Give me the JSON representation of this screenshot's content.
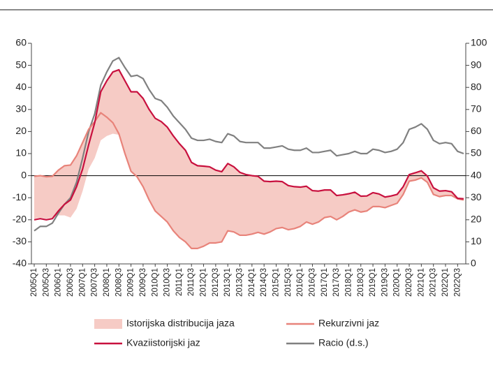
{
  "chart_data": {
    "type": "line",
    "categories": [
      "2005Q1",
      null,
      "2005Q3",
      null,
      "2006Q1",
      null,
      "2006Q3",
      null,
      "2007Q1",
      null,
      "2007Q3",
      null,
      "2008Q1",
      null,
      "2008Q3",
      null,
      "2009Q1",
      null,
      "2009Q3",
      null,
      "2010Q1",
      null,
      "2010Q3",
      null,
      "2011Q1",
      null,
      "2011Q3",
      null,
      "2012Q1",
      null,
      "2012Q3",
      null,
      "2013Q1",
      null,
      "2013Q3",
      null,
      "2014Q1",
      null,
      "2014Q3",
      null,
      "2015Q1",
      null,
      "2015Q3",
      null,
      "2016Q1",
      null,
      "2016Q3",
      null,
      "2017Q1",
      null,
      "2017Q3",
      null,
      "2018Q1",
      null,
      "2018Q3",
      null,
      "2019Q1",
      null,
      "2019Q3",
      null,
      "2020Q1",
      null,
      "2020Q3",
      null,
      "2021Q1",
      null,
      "2021Q3",
      null,
      "2022Q1",
      null,
      "2022Q3",
      null
    ],
    "band": {
      "name": "Istorijska distribucija jaza",
      "color": "#f6cbc5",
      "low": [
        -19.5,
        -19,
        -19.5,
        -19,
        -18,
        -18,
        -19,
        -15,
        -7,
        3,
        8,
        16,
        18,
        19,
        18.5,
        10,
        2,
        -0.5,
        -5,
        -11,
        -16,
        -18.5,
        -21,
        -25,
        -28,
        -30,
        -33,
        -33,
        -32,
        -30.5,
        -30.5,
        -30,
        -25,
        -25.5,
        -27,
        -27,
        -26.5,
        -25.7,
        -26.5,
        -25.5,
        -24,
        -23.5,
        -24.5,
        -24,
        -23,
        -21,
        -22,
        -21,
        -19,
        -18.5,
        -20,
        -18.5,
        -16.5,
        -15.5,
        -16.5,
        -16,
        -14,
        -14,
        -14.5,
        -13.5,
        -12.5,
        -8.5,
        -2.5,
        -2,
        -1,
        -3,
        -8.5,
        -9.5,
        -9,
        -9,
        -10.5,
        -11
      ],
      "high": [
        -0.3,
        0,
        -0.5,
        -0.3,
        2.5,
        4.5,
        4.8,
        9,
        15,
        21,
        24.5,
        38,
        43,
        47,
        48,
        43,
        38,
        38,
        35,
        30,
        26,
        24.5,
        22,
        18,
        14.5,
        11.5,
        6,
        4.5,
        4.3,
        4,
        2.5,
        1.8,
        5.5,
        4,
        1.5,
        0.5,
        0,
        -0.3,
        -2.5,
        -2.7,
        -2.5,
        -2.7,
        -4.5,
        -5,
        -5.2,
        -4.8,
        -6.8,
        -7,
        -6.5,
        -6.5,
        -9,
        -8.7,
        -8.2,
        -7.5,
        -9.3,
        -9.2,
        -7.7,
        -8.3,
        -9.7,
        -9.2,
        -8.5,
        -5,
        0.5,
        1.3,
        2.2,
        -0.2,
        -5.5,
        -7,
        -6.8,
        -7.3,
        -10.3,
        -10.5
      ]
    },
    "series": [
      {
        "name": "Rekurzivni jaz",
        "color": "#e8837a",
        "values": [
          -0.3,
          0,
          -0.5,
          -0.3,
          2.5,
          4.5,
          4.8,
          9,
          15,
          21,
          24.5,
          28.5,
          26.5,
          24,
          19,
          10,
          2,
          -0.5,
          -5,
          -11,
          -16,
          -18.5,
          -21,
          -25,
          -28,
          -30,
          -33,
          -33,
          -32,
          -30.5,
          -30.5,
          -30,
          -25,
          -25.5,
          -27,
          -27,
          -26.5,
          -25.7,
          -26.5,
          -25.5,
          -24,
          -23.5,
          -24.5,
          -24,
          -23,
          -21,
          -22,
          -21,
          -19,
          -18.5,
          -20,
          -18.5,
          -16.5,
          -15.5,
          -16.5,
          -16,
          -14,
          -14,
          -14.5,
          -13.5,
          -12.5,
          -8.5,
          -2.5,
          -2,
          -1,
          -3,
          -8.5,
          -9.5,
          -9,
          -9,
          -10.5,
          -11
        ]
      },
      {
        "name": "Kvaziistorijski jaz",
        "color": "#c8103e",
        "values": [
          -20,
          -19.5,
          -20,
          -19.5,
          -16,
          -13,
          -11,
          -5,
          3,
          14,
          24,
          38,
          43,
          47,
          48,
          43,
          38,
          38,
          35,
          30,
          26,
          24.5,
          22,
          18,
          14.5,
          11.5,
          6,
          4.5,
          4.3,
          4,
          2.5,
          1.8,
          5.5,
          4,
          1.5,
          0.5,
          0,
          -0.3,
          -2.5,
          -2.7,
          -2.5,
          -2.7,
          -4.5,
          -5,
          -5.2,
          -4.8,
          -6.8,
          -7,
          -6.5,
          -6.5,
          -9,
          -8.7,
          -8.2,
          -7.5,
          -9.3,
          -9.2,
          -7.7,
          -8.3,
          -9.7,
          -9.2,
          -8.5,
          -5,
          0.5,
          1.3,
          2.2,
          -0.2,
          -5.5,
          -7,
          -6.8,
          -7.3,
          -10.3,
          -10.5
        ]
      },
      {
        "name": "Racio (d.s.)",
        "color": "#808080",
        "axis": "y2",
        "values": [
          15,
          17,
          17,
          18.5,
          23,
          27,
          30,
          37,
          48,
          60,
          68,
          81,
          87,
          92,
          93.5,
          89,
          85,
          85.5,
          84,
          79,
          75,
          74,
          71,
          67,
          64,
          61,
          57,
          56,
          56,
          56.5,
          55.5,
          55,
          59,
          58,
          55.5,
          55,
          55,
          55,
          52.5,
          52.5,
          53,
          53.5,
          52,
          51.5,
          51.5,
          52.5,
          50.5,
          50.5,
          51,
          51.5,
          49,
          49.5,
          50,
          51,
          50,
          50,
          52,
          51.5,
          50.5,
          51,
          52,
          55,
          61,
          62,
          63.5,
          61,
          56,
          54.5,
          55,
          54.5,
          51,
          50
        ]
      }
    ],
    "ylim": [
      -40,
      60
    ],
    "yticks": [
      -40,
      -30,
      -20,
      -10,
      0,
      10,
      20,
      30,
      40,
      50,
      60
    ],
    "y2lim": [
      0,
      100
    ],
    "y2ticks": [
      0,
      10,
      20,
      30,
      40,
      50,
      60,
      70,
      80,
      90,
      100
    ],
    "legend": "bottom"
  }
}
